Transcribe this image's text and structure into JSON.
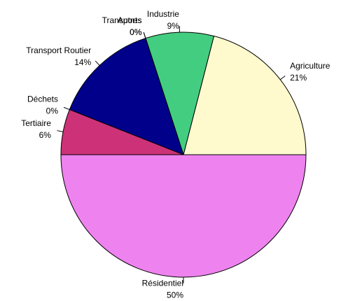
{
  "chart_data": {
    "type": "pie",
    "categories": [
      "Agriculture",
      "Industrie",
      "Autres",
      "Transports",
      "Transport Routier",
      "Déchets",
      "Tertiaire",
      "Résidentiel"
    ],
    "values": [
      21,
      9,
      0,
      0,
      14,
      0,
      6,
      50
    ],
    "value_labels": [
      "21%",
      "9%",
      "0%",
      "0%",
      "14%",
      "0%",
      "6%",
      "50%"
    ],
    "colors": [
      "#fffacd",
      "#43cd80",
      "#8b4513",
      "#ffa500",
      "#00008b",
      "#696969",
      "#cd3278",
      "#ee82ee"
    ]
  }
}
